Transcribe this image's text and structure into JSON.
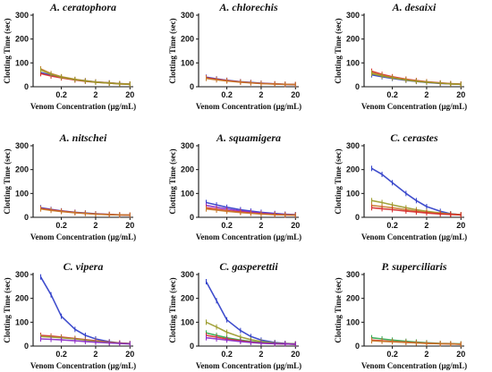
{
  "chart_data": [
    {
      "type": "line",
      "title": "A. ceratophora",
      "xlabel": "Venom Concentration (µg/mL)",
      "ylabel": "Clotting Time (sec)",
      "x_scale": "log",
      "x_ticks": [
        "0.2",
        "2",
        "20"
      ],
      "y_ticks": [
        "0",
        "100",
        "200",
        "300"
      ],
      "ylim": [
        0,
        300
      ],
      "x": [
        0.05,
        0.1,
        0.2,
        0.5,
        1,
        2,
        5,
        10,
        20
      ],
      "series": [
        {
          "color": "#2b3bc8",
          "values": [
            60,
            48,
            40,
            30,
            25,
            20,
            16,
            13,
            11
          ]
        },
        {
          "color": "#d62a2a",
          "values": [
            55,
            45,
            37,
            28,
            23,
            19,
            15,
            12,
            10
          ]
        },
        {
          "color": "#c87a2a",
          "values": [
            75,
            55,
            42,
            31,
            25,
            20,
            16,
            13,
            11
          ]
        },
        {
          "color": "#9a9a2a",
          "values": [
            70,
            52,
            40,
            30,
            24,
            19,
            15,
            12,
            10
          ]
        }
      ]
    },
    {
      "type": "line",
      "title": "A. chlorechis",
      "xlabel": "Venom Concentration (µg/mL)",
      "ylabel": "Clotting Time (sec)",
      "x_scale": "log",
      "x_ticks": [
        "0.2",
        "2",
        "20"
      ],
      "y_ticks": [
        "0",
        "100",
        "200",
        "300"
      ],
      "ylim": [
        0,
        300
      ],
      "x": [
        0.05,
        0.1,
        0.2,
        0.5,
        1,
        2,
        5,
        10,
        20
      ],
      "series": [
        {
          "color": "#2b3bc8",
          "values": [
            40,
            33,
            27,
            21,
            18,
            15,
            12,
            10,
            9
          ]
        },
        {
          "color": "#d62a2a",
          "values": [
            38,
            31,
            26,
            20,
            17,
            14,
            12,
            10,
            9
          ]
        },
        {
          "color": "#c87a2a",
          "values": [
            35,
            29,
            24,
            19,
            16,
            13,
            11,
            10,
            9
          ]
        }
      ]
    },
    {
      "type": "line",
      "title": "A. desaixi",
      "xlabel": "Venom Concentration (µg/mL)",
      "ylabel": "Clotting Time (sec)",
      "x_scale": "log",
      "x_ticks": [
        "0.2",
        "2",
        "20"
      ],
      "y_ticks": [
        "0",
        "100",
        "200",
        "300"
      ],
      "ylim": [
        0,
        300
      ],
      "x": [
        0.05,
        0.1,
        0.2,
        0.5,
        1,
        2,
        5,
        10,
        20
      ],
      "series": [
        {
          "color": "#2b3bc8",
          "values": [
            50,
            42,
            35,
            27,
            22,
            18,
            14,
            12,
            10
          ]
        },
        {
          "color": "#d62a2a",
          "values": [
            65,
            52,
            42,
            32,
            26,
            21,
            16,
            13,
            11
          ]
        },
        {
          "color": "#c87a2a",
          "values": [
            60,
            48,
            39,
            30,
            24,
            20,
            15,
            12,
            10
          ]
        },
        {
          "color": "#9a9a2a",
          "values": [
            55,
            45,
            37,
            28,
            23,
            19,
            15,
            12,
            10
          ]
        }
      ]
    },
    {
      "type": "line",
      "title": "A. nitschei",
      "xlabel": "Venom Concentration (µg/mL)",
      "ylabel": "Clotting Time (sec)",
      "x_scale": "log",
      "x_ticks": [
        "0.2",
        "2",
        "20"
      ],
      "y_ticks": [
        "0",
        "100",
        "200",
        "300"
      ],
      "ylim": [
        0,
        300
      ],
      "x": [
        0.05,
        0.1,
        0.2,
        0.5,
        1,
        2,
        5,
        10,
        20
      ],
      "series": [
        {
          "color": "#2b3bc8",
          "values": [
            40,
            33,
            27,
            21,
            18,
            15,
            12,
            10,
            9
          ]
        },
        {
          "color": "#d62a2a",
          "values": [
            37,
            31,
            26,
            20,
            17,
            14,
            12,
            10,
            9
          ]
        },
        {
          "color": "#c87a2a",
          "values": [
            35,
            29,
            24,
            19,
            16,
            13,
            11,
            10,
            9
          ]
        }
      ]
    },
    {
      "type": "line",
      "title": "A. squamigera",
      "xlabel": "Venom Concentration (µg/mL)",
      "ylabel": "Clotting Time (sec)",
      "x_scale": "log",
      "x_ticks": [
        "0.2",
        "2",
        "20"
      ],
      "y_ticks": [
        "0",
        "100",
        "200",
        "300"
      ],
      "ylim": [
        0,
        300
      ],
      "x": [
        0.05,
        0.1,
        0.2,
        0.5,
        1,
        2,
        5,
        10,
        20
      ],
      "series": [
        {
          "color": "#2b3bc8",
          "values": [
            62,
            52,
            42,
            32,
            26,
            21,
            16,
            13,
            11
          ]
        },
        {
          "color": "#8a2ac8",
          "values": [
            50,
            42,
            35,
            27,
            22,
            18,
            14,
            12,
            10
          ]
        },
        {
          "color": "#d62a2a",
          "values": [
            40,
            34,
            28,
            22,
            18,
            15,
            12,
            10,
            9
          ]
        },
        {
          "color": "#c87a2a",
          "values": [
            35,
            30,
            25,
            20,
            17,
            14,
            11,
            10,
            9
          ]
        }
      ]
    },
    {
      "type": "line",
      "title": "C. cerastes",
      "xlabel": "Venom Concentration (µg/mL)",
      "ylabel": "Clotting Time (sec)",
      "x_scale": "log",
      "x_ticks": [
        "0.2",
        "2",
        "20"
      ],
      "y_ticks": [
        "0",
        "100",
        "200",
        "300"
      ],
      "ylim": [
        0,
        300
      ],
      "x": [
        0.05,
        0.1,
        0.2,
        0.5,
        1,
        2,
        5,
        10,
        20
      ],
      "series": [
        {
          "color": "#2b3bc8",
          "values": [
            205,
            180,
            145,
            100,
            70,
            45,
            25,
            15,
            10
          ]
        },
        {
          "color": "#9a9a2a",
          "values": [
            70,
            62,
            52,
            40,
            32,
            25,
            18,
            14,
            11
          ]
        },
        {
          "color": "#c87a2a",
          "values": [
            50,
            45,
            40,
            32,
            26,
            21,
            16,
            13,
            10
          ]
        },
        {
          "color": "#d62a2a",
          "values": [
            40,
            36,
            32,
            26,
            22,
            18,
            14,
            12,
            10
          ]
        }
      ]
    },
    {
      "type": "line",
      "title": "C. vipera",
      "xlabel": "Venom Concentration (µg/mL)",
      "ylabel": "Clotting Time (sec)",
      "x_scale": "log",
      "x_ticks": [
        "0.2",
        "2",
        "20"
      ],
      "y_ticks": [
        "0",
        "100",
        "200",
        "300"
      ],
      "ylim": [
        0,
        300
      ],
      "x": [
        0.05,
        0.1,
        0.2,
        0.5,
        1,
        2,
        5,
        10,
        20
      ],
      "series": [
        {
          "color": "#2b3bc8",
          "values": [
            290,
            215,
            125,
            70,
            45,
            30,
            18,
            13,
            10
          ]
        },
        {
          "color": "#d62a2a",
          "values": [
            45,
            42,
            38,
            32,
            27,
            22,
            16,
            13,
            10
          ]
        },
        {
          "color": "#9a9a2a",
          "values": [
            40,
            38,
            35,
            30,
            25,
            20,
            15,
            12,
            10
          ]
        },
        {
          "color": "#8a2ac8",
          "values": [
            30,
            28,
            26,
            22,
            19,
            16,
            13,
            11,
            9
          ]
        }
      ]
    },
    {
      "type": "line",
      "title": "C. gasperettii",
      "xlabel": "Venom Concentration (µg/mL)",
      "ylabel": "Clotting Time (sec)",
      "x_scale": "log",
      "x_ticks": [
        "0.2",
        "2",
        "20"
      ],
      "y_ticks": [
        "0",
        "100",
        "200",
        "300"
      ],
      "ylim": [
        0,
        300
      ],
      "x": [
        0.05,
        0.1,
        0.2,
        0.5,
        1,
        2,
        5,
        10,
        20
      ],
      "series": [
        {
          "color": "#2b3bc8",
          "values": [
            270,
            190,
            110,
            65,
            40,
            25,
            15,
            11,
            9
          ]
        },
        {
          "color": "#9a9a2a",
          "values": [
            100,
            80,
            58,
            38,
            27,
            19,
            13,
            10,
            9
          ]
        },
        {
          "color": "#2aa84a",
          "values": [
            55,
            45,
            35,
            25,
            19,
            15,
            11,
            9,
            8
          ]
        },
        {
          "color": "#d62a2a",
          "values": [
            45,
            38,
            30,
            22,
            17,
            13,
            10,
            9,
            8
          ]
        },
        {
          "color": "#8a2ac8",
          "values": [
            35,
            30,
            25,
            19,
            15,
            12,
            10,
            9,
            8
          ]
        }
      ]
    },
    {
      "type": "line",
      "title": "P. superciliaris",
      "xlabel": "Venom Concentration (µg/mL)",
      "ylabel": "Clotting Time (sec)",
      "x_scale": "log",
      "x_ticks": [
        "0.2",
        "2",
        "20"
      ],
      "y_ticks": [
        "0",
        "100",
        "200",
        "300"
      ],
      "ylim": [
        0,
        300
      ],
      "x": [
        0.05,
        0.1,
        0.2,
        0.5,
        1,
        2,
        5,
        10,
        20
      ],
      "series": [
        {
          "color": "#2aa84a",
          "values": [
            35,
            30,
            25,
            20,
            17,
            14,
            11,
            10,
            9
          ]
        },
        {
          "color": "#d62a2a",
          "values": [
            25,
            22,
            19,
            16,
            14,
            12,
            10,
            9,
            8
          ]
        },
        {
          "color": "#c87a2a",
          "values": [
            22,
            20,
            18,
            15,
            13,
            11,
            10,
            9,
            8
          ]
        }
      ]
    }
  ]
}
